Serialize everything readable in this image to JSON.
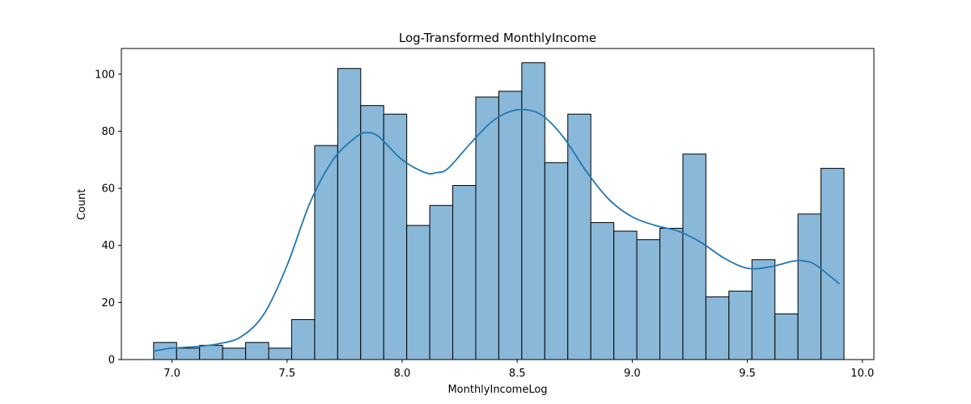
{
  "chart_data": {
    "type": "bar",
    "title": "Log-Transformed MonthlyIncome",
    "xlabel": "MonthlyIncomeLog",
    "ylabel": "Count",
    "xlim": [
      6.78,
      10.05
    ],
    "ylim": [
      0,
      109
    ],
    "xticks": [
      7.0,
      7.5,
      8.0,
      8.5,
      9.0,
      9.5,
      10.0
    ],
    "yticks": [
      0,
      20,
      40,
      60,
      80,
      100
    ],
    "grid": false,
    "legend": "none",
    "bin_start": 6.92,
    "bin_width": 0.1,
    "values": [
      6,
      4,
      5,
      4,
      6,
      4,
      14,
      75,
      102,
      89,
      86,
      47,
      54,
      61,
      92,
      94,
      104,
      69,
      86,
      48,
      45,
      42,
      46,
      72,
      22,
      24,
      35,
      16,
      51,
      67
    ],
    "kde": {
      "x": [
        6.92,
        7.0,
        7.1,
        7.2,
        7.3,
        7.4,
        7.5,
        7.6,
        7.7,
        7.8,
        7.85,
        7.9,
        8.0,
        8.1,
        8.15,
        8.2,
        8.3,
        8.4,
        8.5,
        8.6,
        8.7,
        8.8,
        8.9,
        9.0,
        9.1,
        9.2,
        9.3,
        9.4,
        9.5,
        9.6,
        9.7,
        9.75,
        9.8,
        9.9
      ],
      "y": [
        3,
        4,
        4.5,
        5.5,
        8,
        16,
        33,
        55,
        70,
        78,
        79.5,
        78,
        70,
        65.5,
        65.5,
        67,
        76,
        84,
        87.5,
        86,
        78,
        66,
        56,
        50,
        47,
        45,
        41,
        35.5,
        32,
        32.5,
        34.5,
        34.5,
        33,
        26.5
      ]
    },
    "colors": {
      "bar_fill": "#8ab8d8",
      "bar_edge": "#000000",
      "kde_line": "#1f77b4"
    }
  }
}
